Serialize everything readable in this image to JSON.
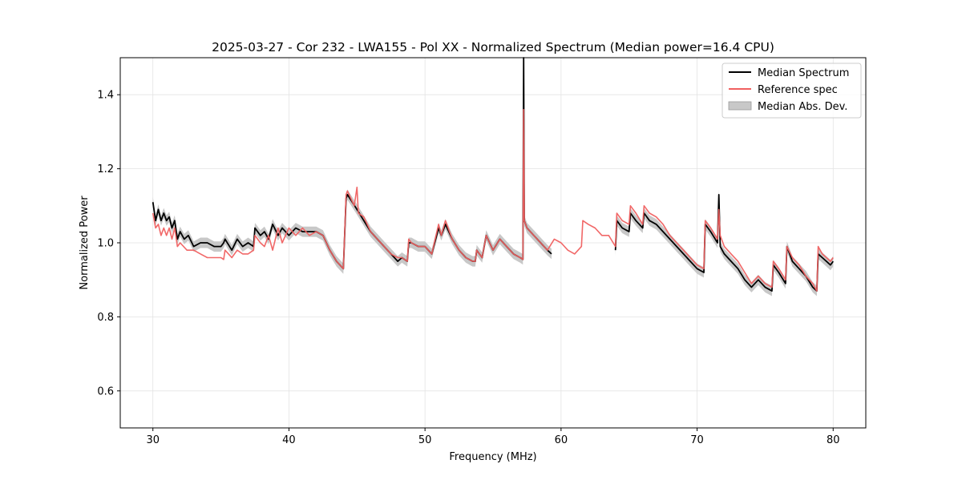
{
  "chart_data": {
    "type": "line",
    "title": "2025-03-27 - Cor 232 - LWA155 - Pol XX - Normalized Spectrum (Median power=16.4 CPU)",
    "xlabel": "Frequency (MHz)",
    "ylabel": "Normalized Power",
    "xlim": [
      27.6,
      82.4
    ],
    "ylim": [
      0.5,
      1.5
    ],
    "xticks": [
      30,
      40,
      50,
      60,
      70,
      80
    ],
    "yticks": [
      0.6,
      0.8,
      1.0,
      1.2,
      1.4
    ],
    "xtick_labels": [
      "30",
      "40",
      "50",
      "60",
      "70",
      "80"
    ],
    "ytick_labels": [
      "0.6",
      "0.8",
      "1.0",
      "1.2",
      "1.4"
    ],
    "grid": true,
    "legend": {
      "position": "top-right",
      "entries": [
        {
          "label": "Median Spectrum",
          "color": "#000000",
          "kind": "line"
        },
        {
          "label": "Reference spec",
          "color": "#f06060",
          "kind": "line"
        },
        {
          "label": "Median Abs. Dev.",
          "color": "#c8c8c8",
          "kind": "band"
        }
      ]
    },
    "series": [
      {
        "name": "Median Spectrum",
        "color": "#000000",
        "x": [
          30.0,
          30.2,
          30.4,
          30.6,
          30.8,
          31.0,
          31.2,
          31.4,
          31.6,
          31.8,
          32.0,
          32.3,
          32.6,
          33.0,
          33.5,
          34.0,
          34.5,
          35.0,
          35.2,
          35.3,
          35.8,
          36.2,
          36.6,
          37.0,
          37.4,
          37.5,
          37.9,
          38.2,
          38.5,
          38.8,
          39.2,
          39.5,
          40.0,
          40.5,
          41.0,
          41.5,
          42.0,
          42.5,
          43.0,
          43.5,
          44.0,
          44.2,
          44.3,
          45.0,
          45.5,
          46.0,
          46.5,
          47.0,
          47.5,
          48.0,
          48.3,
          48.7,
          48.8,
          49.0,
          49.5,
          50.0,
          50.5,
          51.0,
          51.2,
          51.5,
          52.0,
          52.5,
          53.0,
          53.5,
          53.7,
          53.8,
          54.0,
          54.2,
          54.5,
          55.0,
          55.5,
          56.0,
          56.5,
          57.0,
          57.2,
          57.25,
          57.3,
          57.5,
          58.0,
          58.5,
          59.0,
          59.3
        ],
        "values": [
          1.11,
          1.06,
          1.09,
          1.06,
          1.08,
          1.06,
          1.07,
          1.04,
          1.06,
          1.01,
          1.03,
          1.01,
          1.02,
          0.99,
          1.0,
          1.0,
          0.99,
          0.99,
          1.0,
          1.01,
          0.98,
          1.01,
          0.99,
          1.0,
          0.99,
          1.04,
          1.02,
          1.03,
          1.01,
          1.05,
          1.02,
          1.04,
          1.02,
          1.04,
          1.03,
          1.03,
          1.03,
          1.02,
          0.98,
          0.95,
          0.93,
          1.12,
          1.13,
          1.09,
          1.06,
          1.03,
          1.01,
          0.99,
          0.97,
          0.95,
          0.96,
          0.95,
          1.0,
          1.0,
          0.99,
          0.99,
          0.97,
          1.04,
          1.02,
          1.05,
          1.01,
          0.98,
          0.96,
          0.95,
          0.95,
          0.98,
          0.97,
          0.96,
          1.02,
          0.98,
          1.01,
          0.99,
          0.97,
          0.96,
          0.955,
          1.5,
          1.06,
          1.04,
          1.02,
          1.0,
          0.98,
          0.97
        ]
      },
      {
        "name": "Median Spectrum",
        "color": "#000000",
        "x": [
          64.0,
          64.1,
          64.5,
          65.0,
          65.1,
          65.5,
          66.0,
          66.1,
          66.5,
          67.0,
          67.5,
          68.0,
          68.5,
          69.0,
          69.5,
          70.0,
          70.5,
          70.6,
          71.0,
          71.5,
          71.6,
          71.7,
          72.0,
          72.5,
          73.0,
          73.5,
          74.0,
          74.5,
          75.0,
          75.5,
          75.6,
          76.0,
          76.5,
          76.6,
          77.0,
          77.5,
          78.0,
          78.5,
          78.8,
          78.9,
          79.2,
          79.5,
          79.8,
          80.0
        ],
        "values": [
          0.98,
          1.06,
          1.04,
          1.03,
          1.08,
          1.06,
          1.04,
          1.08,
          1.06,
          1.05,
          1.03,
          1.01,
          0.99,
          0.97,
          0.95,
          0.93,
          0.92,
          1.05,
          1.03,
          1.0,
          1.13,
          0.99,
          0.97,
          0.95,
          0.93,
          0.9,
          0.88,
          0.9,
          0.88,
          0.87,
          0.94,
          0.92,
          0.89,
          0.99,
          0.95,
          0.93,
          0.91,
          0.88,
          0.87,
          0.97,
          0.96,
          0.95,
          0.94,
          0.95
        ]
      },
      {
        "name": "Reference spec",
        "color": "#f06060",
        "x": [
          30.0,
          30.2,
          30.4,
          30.6,
          30.8,
          31.0,
          31.2,
          31.4,
          31.6,
          31.8,
          32.0,
          32.5,
          33.0,
          33.5,
          34.0,
          34.5,
          35.0,
          35.2,
          35.3,
          35.8,
          36.2,
          36.6,
          37.0,
          37.4,
          37.5,
          37.9,
          38.2,
          38.5,
          38.8,
          39.2,
          39.5,
          40.0,
          40.5,
          41.0,
          41.5,
          42.0,
          42.5,
          43.0,
          43.5,
          44.0,
          44.2,
          44.3,
          44.8,
          45.0,
          45.1,
          45.5,
          46.0,
          46.5,
          47.0,
          47.5,
          48.0,
          48.3,
          48.7,
          48.8,
          49.0,
          49.5,
          50.0,
          50.5,
          51.0,
          51.2,
          51.5,
          52.0,
          52.5,
          53.0,
          53.5,
          53.7,
          53.8,
          54.0,
          54.2,
          54.5,
          55.0,
          55.5,
          56.0,
          56.5,
          57.0,
          57.2,
          57.25,
          57.3,
          57.5,
          58.0,
          58.5,
          59.0,
          59.5,
          60.0,
          60.5,
          61.0,
          61.5,
          61.6,
          62.0,
          62.5,
          63.0,
          63.5,
          64.0,
          64.1,
          64.5,
          65.0,
          65.1,
          65.5,
          66.0,
          66.1,
          66.5,
          67.0,
          67.5,
          68.0,
          68.5,
          69.0,
          69.5,
          70.0,
          70.5,
          70.6,
          71.0,
          71.5,
          71.6,
          71.7,
          72.0,
          72.5,
          73.0,
          73.5,
          74.0,
          74.5,
          75.0,
          75.5,
          75.6,
          76.0,
          76.5,
          76.6,
          77.0,
          77.5,
          78.0,
          78.5,
          78.8,
          78.9,
          79.2,
          79.5,
          79.8,
          80.0
        ],
        "values": [
          1.08,
          1.04,
          1.05,
          1.02,
          1.04,
          1.02,
          1.04,
          1.01,
          1.04,
          0.99,
          1.0,
          0.98,
          0.98,
          0.97,
          0.96,
          0.96,
          0.96,
          0.955,
          0.98,
          0.96,
          0.98,
          0.97,
          0.97,
          0.98,
          1.02,
          1.0,
          0.99,
          1.02,
          0.98,
          1.04,
          1.0,
          1.04,
          1.02,
          1.04,
          1.02,
          1.03,
          1.02,
          0.98,
          0.95,
          0.93,
          1.13,
          1.14,
          1.1,
          1.15,
          1.08,
          1.07,
          1.03,
          1.01,
          0.99,
          0.97,
          0.96,
          0.96,
          0.95,
          1.01,
          1.0,
          0.99,
          0.99,
          0.97,
          1.05,
          1.02,
          1.06,
          1.01,
          0.98,
          0.96,
          0.95,
          0.95,
          0.98,
          0.97,
          0.96,
          1.02,
          0.98,
          1.01,
          0.99,
          0.97,
          0.96,
          0.955,
          1.36,
          1.06,
          1.04,
          1.02,
          1.0,
          0.98,
          1.01,
          1.0,
          0.98,
          0.97,
          0.99,
          1.06,
          1.05,
          1.04,
          1.02,
          1.02,
          0.99,
          1.08,
          1.06,
          1.05,
          1.1,
          1.08,
          1.05,
          1.1,
          1.08,
          1.07,
          1.05,
          1.02,
          1.0,
          0.98,
          0.96,
          0.94,
          0.93,
          1.06,
          1.04,
          1.01,
          1.09,
          1.02,
          0.99,
          0.97,
          0.95,
          0.92,
          0.89,
          0.91,
          0.89,
          0.88,
          0.95,
          0.93,
          0.9,
          0.99,
          0.96,
          0.94,
          0.91,
          0.89,
          0.87,
          0.99,
          0.97,
          0.96,
          0.95,
          0.96
        ]
      }
    ]
  }
}
